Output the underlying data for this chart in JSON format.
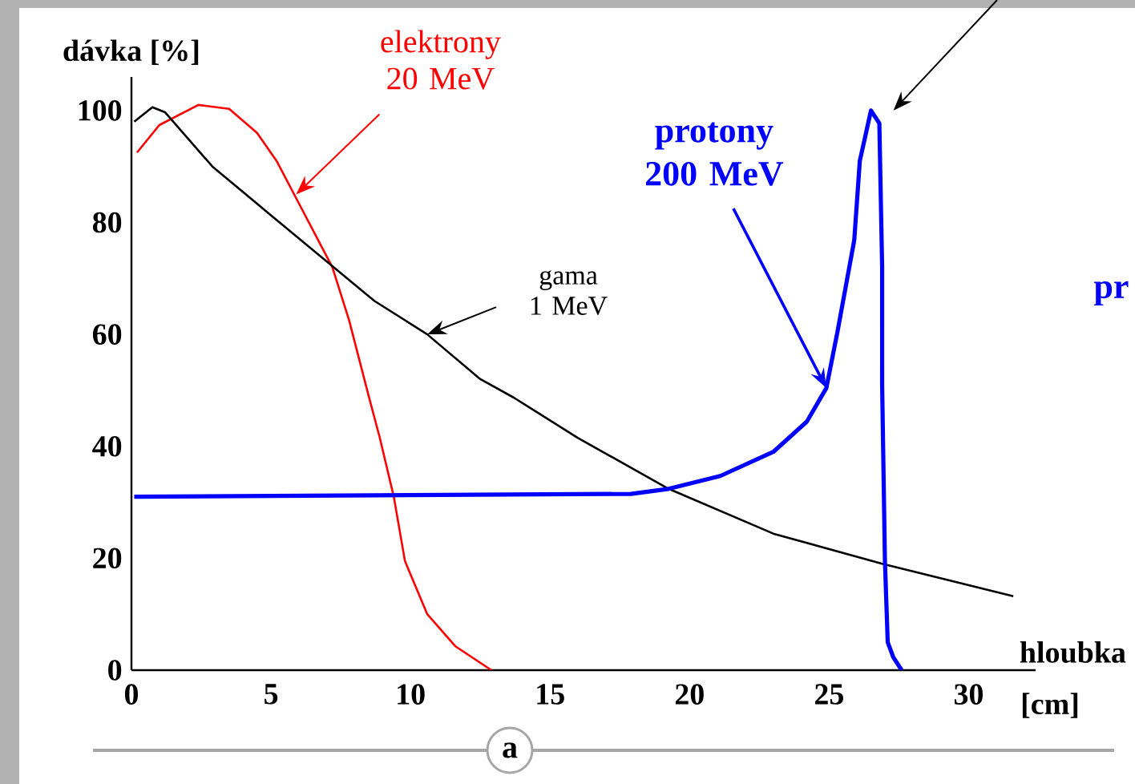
{
  "chart_data": {
    "type": "line",
    "ylabel": "dávka [%]",
    "xlabel": "hloubka",
    "xlim": [
      0,
      32.4
    ],
    "ylim": [
      0,
      106
    ],
    "xticks": [
      0,
      5,
      10,
      15,
      20,
      25,
      30
    ],
    "yticks": [
      0,
      20,
      40,
      60,
      80,
      100
    ],
    "grid": false,
    "marker": "none",
    "line_style": "solid",
    "series": [
      {
        "color": "#ff0000",
        "x": [
          0.2,
          1.0,
          2.4,
          3.5,
          4.5,
          5.2,
          6.0,
          7.2,
          7.8,
          8.5,
          8.9,
          9.4,
          9.8,
          10.6,
          11.6,
          12.9
        ],
        "values": [
          92.5,
          97.4,
          101,
          100.3,
          96,
          91,
          83.4,
          72,
          62.5,
          49,
          41.5,
          31,
          19.5,
          10,
          4.3,
          0
        ]
      },
      {
        "color": "#000000",
        "x": [
          0.1,
          0.75,
          1.2,
          2.9,
          4.9,
          7.0,
          8.7,
          10.6,
          12.5,
          13.7,
          16.0,
          19.25,
          23.0,
          26.9,
          31.6
        ],
        "values": [
          98,
          100.6,
          99.7,
          90,
          81.7,
          73,
          66,
          60,
          52,
          48.7,
          41.5,
          32.4,
          24.4,
          19,
          13.2
        ]
      },
      {
        "color": "#0000ff",
        "x": [
          0.1,
          17.9,
          19.25,
          21.1,
          23.0,
          24.2,
          24.9,
          25.3,
          25.9,
          26.1,
          26.5,
          26.8,
          26.9,
          26.9,
          27.0,
          27.1,
          27.3,
          27.6
        ],
        "values": [
          31,
          31.5,
          32.4,
          34.7,
          39,
          44.4,
          50.4,
          60.5,
          76.8,
          91,
          100,
          97.7,
          72,
          51,
          19.5,
          5,
          2.3,
          0
        ]
      }
    ],
    "annotations": [
      {
        "text": "elektrony 20 MeV",
        "x": 5.9,
        "y": 85
      },
      {
        "text": "gama 1 MeV",
        "x": 10.6,
        "y": 60
      },
      {
        "text": "protony 200 MeV",
        "x": 24.9,
        "y": 50.4
      },
      "[cm]",
      "a",
      "pr"
    ]
  }
}
